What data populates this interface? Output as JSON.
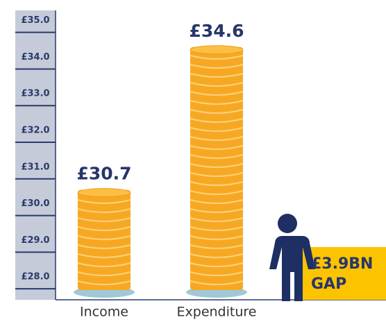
{
  "chart_data": {
    "type": "coin-bar",
    "categories": [
      "Income",
      "Expenditure"
    ],
    "values": [
      30.7,
      34.6
    ],
    "value_labels": [
      "£30.7",
      "£34.6"
    ],
    "color": "#f7a823",
    "ylim": [
      27.7,
      35.6
    ],
    "yticks": [
      {
        "value": 28,
        "label": "£28.0"
      },
      {
        "value": 29,
        "label": "£29.0"
      },
      {
        "value": 30,
        "label": "£30.0"
      },
      {
        "value": 31,
        "label": "£31.0"
      },
      {
        "value": 32,
        "label": "£32.0"
      },
      {
        "value": 33,
        "label": "£33.0"
      },
      {
        "value": 34,
        "label": "£34.0"
      },
      {
        "value": 35,
        "label": "£35.0"
      }
    ],
    "annotation": [
      "£3.9BN",
      "GAP"
    ]
  }
}
